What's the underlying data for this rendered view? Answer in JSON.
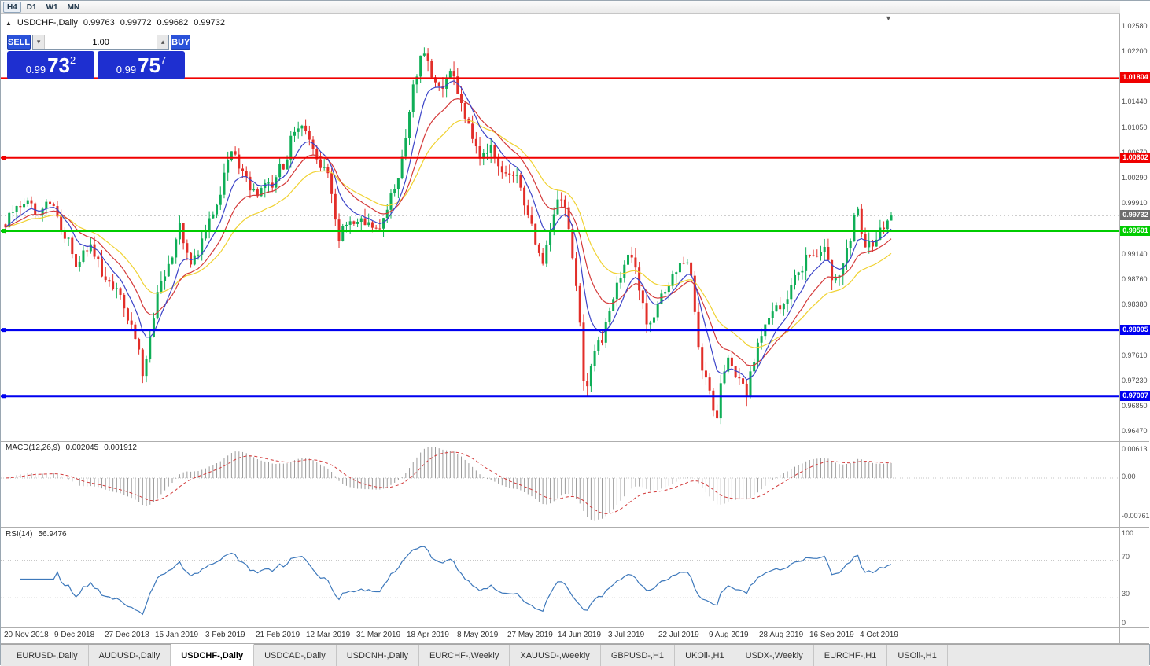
{
  "toolbar": {
    "timeframes": [
      "H4",
      "D1",
      "W1",
      "MN"
    ],
    "boxed": "H4"
  },
  "chart_header": {
    "symbol_title": "USDCHF-,Daily",
    "open": "0.99763",
    "high": "0.99772",
    "low": "0.99682",
    "close": "0.99732"
  },
  "icons": {
    "title_icon": "▲",
    "volume_down": "▾",
    "volume_up": "▴",
    "shift_marker": "▼"
  },
  "trade_panel": {
    "sell_label": "SELL",
    "buy_label": "BUY",
    "volume": "1.00",
    "sell": {
      "prefix": "0.99",
      "big": "73",
      "sup": "2"
    },
    "buy": {
      "prefix": "0.99",
      "big": "75",
      "sup": "7"
    }
  },
  "price_axis": {
    "ticks": [
      {
        "label": "1.02580",
        "price": 1.0258
      },
      {
        "label": "1.02200",
        "price": 1.022
      },
      {
        "label": "1.01440",
        "price": 1.0144
      },
      {
        "label": "1.01050",
        "price": 1.0105
      },
      {
        "label": "1.00670",
        "price": 1.0067
      },
      {
        "label": "1.00290",
        "price": 1.0029
      },
      {
        "label": "0.99910",
        "price": 0.9991
      },
      {
        "label": "0.99140",
        "price": 0.9914
      },
      {
        "label": "0.98760",
        "price": 0.9876
      },
      {
        "label": "0.98380",
        "price": 0.9838
      },
      {
        "label": "0.97610",
        "price": 0.9761
      },
      {
        "label": "0.97230",
        "price": 0.9723
      },
      {
        "label": "0.96850",
        "price": 0.9685
      },
      {
        "label": "0.96470",
        "price": 0.9647
      }
    ]
  },
  "levels": [
    {
      "price": 1.01804,
      "label": "1.01804",
      "color": "#f00000",
      "width": 2,
      "handle": false
    },
    {
      "price": 1.00602,
      "label": "1.00602",
      "color": "#f00000",
      "width": 2,
      "handle": true
    },
    {
      "price": 0.99501,
      "label": "0.99501",
      "color": "#00cc00",
      "width": 3,
      "handle": true
    },
    {
      "price": 0.98005,
      "label": "0.98005",
      "color": "#0000f0",
      "width": 3,
      "handle": true
    },
    {
      "price": 0.97007,
      "label": "0.97007",
      "color": "#0000f0",
      "width": 3,
      "handle": true
    }
  ],
  "current_price": {
    "value": 0.99732,
    "label": "0.99732",
    "badge_color": "#6e6e6e"
  },
  "macd": {
    "label": "MACD(12,26,9)",
    "value1": "0.002045",
    "value2": "0.001912",
    "axis": [
      "0.00613",
      "0.00",
      "-0.00761"
    ],
    "histogram_color": "#9a9a9a",
    "signal_color": "#d23b3b"
  },
  "rsi": {
    "label": "RSI(14)",
    "value": "56.9476",
    "axis": [
      "100",
      "70",
      "30",
      "0"
    ],
    "levels": [
      70,
      30
    ],
    "line_color": "#3d78bb"
  },
  "date_axis": [
    "20 Nov 2018",
    "9 Dec 2018",
    "27 Dec 2018",
    "15 Jan 2019",
    "3 Feb 2019",
    "21 Feb 2019",
    "12 Mar 2019",
    "31 Mar 2019",
    "18 Apr 2019",
    "8 May 2019",
    "27 May 2019",
    "14 Jun 2019",
    "3 Jul 2019",
    "22 Jul 2019",
    "9 Aug 2019",
    "28 Aug 2019",
    "16 Sep 2019",
    "4 Oct 2019"
  ],
  "tabs": {
    "items": [
      "EURUSD-,Daily",
      "AUDUSD-,Daily",
      "USDCHF-,Daily",
      "USDCAD-,Daily",
      "USDCNH-,Daily",
      "EURCHF-,Weekly",
      "XAUUSD-,Weekly",
      "GBPUSD-,H1",
      "UKOil-,H1",
      "USDX-,Weekly",
      "EURCHF-,H1",
      "USOil-,H1"
    ],
    "active_index": 2
  },
  "chart_data": {
    "type": "candlestick",
    "symbol": "USDCHF",
    "timeframe": "Daily",
    "ylim": [
      0.96328,
      1.0277
    ],
    "candle_count": 240,
    "x_start": 6,
    "x_end": 1132,
    "seed": 12,
    "last_close": 0.99732,
    "date_label_x": {
      "start": 4,
      "step": 64
    },
    "colors": {
      "up": "#0fae57",
      "down": "#e22e29",
      "ma_fast": "#3c44c8",
      "ma_mid": "#d43a3a",
      "ma_slow": "#f0d232"
    },
    "ma": {
      "fast_period": 8,
      "mid_period": 16,
      "slow_period": 28
    },
    "waypoints": [
      [
        6,
        0.996
      ],
      [
        25,
        0.999
      ],
      [
        45,
        0.998
      ],
      [
        62,
        0.9995
      ],
      [
        80,
        0.995
      ],
      [
        95,
        0.9905
      ],
      [
        110,
        0.993
      ],
      [
        125,
        0.9895
      ],
      [
        140,
        0.987
      ],
      [
        158,
        0.983
      ],
      [
        172,
        0.979
      ],
      [
        180,
        0.9732
      ],
      [
        188,
        0.978
      ],
      [
        200,
        0.9865
      ],
      [
        215,
        0.9905
      ],
      [
        228,
        0.996
      ],
      [
        240,
        0.9905
      ],
      [
        252,
        0.9925
      ],
      [
        265,
        0.996
      ],
      [
        280,
        1.001
      ],
      [
        292,
        1.008
      ],
      [
        305,
        1.004
      ],
      [
        318,
        1.001
      ],
      [
        330,
        1.0005
      ],
      [
        345,
        1.0025
      ],
      [
        360,
        1.005
      ],
      [
        372,
        1.01
      ],
      [
        380,
        1.012
      ],
      [
        392,
        1.0082
      ],
      [
        405,
        1.0052
      ],
      [
        418,
        1.0022
      ],
      [
        428,
        0.9932
      ],
      [
        440,
        0.9958
      ],
      [
        452,
        0.9975
      ],
      [
        465,
        0.996
      ],
      [
        478,
        0.9945
      ],
      [
        490,
        0.9985
      ],
      [
        502,
        1.002
      ],
      [
        512,
        1.007
      ],
      [
        522,
        1.015
      ],
      [
        532,
        1.02
      ],
      [
        540,
        1.022
      ],
      [
        550,
        1.0175
      ],
      [
        560,
        1.016
      ],
      [
        572,
        1.0195
      ],
      [
        583,
        1.0155
      ],
      [
        592,
        1.012
      ],
      [
        603,
        1.008
      ],
      [
        614,
        1.006
      ],
      [
        625,
        1.0078
      ],
      [
        637,
        1.0045
      ],
      [
        648,
        1.0035
      ],
      [
        658,
        1.0028
      ],
      [
        668,
        0.999
      ],
      [
        678,
        0.9935
      ],
      [
        687,
        0.9895
      ],
      [
        697,
        0.994
      ],
      [
        707,
        0.9985
      ],
      [
        715,
        1.0008
      ],
      [
        722,
        0.9955
      ],
      [
        730,
        0.988
      ],
      [
        737,
        0.98
      ],
      [
        743,
        0.97
      ],
      [
        750,
        0.9745
      ],
      [
        758,
        0.9775
      ],
      [
        768,
        0.98
      ],
      [
        780,
        0.9862
      ],
      [
        790,
        0.989
      ],
      [
        800,
        0.9915
      ],
      [
        810,
        0.987
      ],
      [
        820,
        0.9812
      ],
      [
        832,
        0.9832
      ],
      [
        845,
        0.9855
      ],
      [
        858,
        0.9895
      ],
      [
        868,
        0.9905
      ],
      [
        876,
        0.9912
      ],
      [
        884,
        0.98
      ],
      [
        892,
        0.9745
      ],
      [
        900,
        0.973
      ],
      [
        908,
        0.965
      ],
      [
        916,
        0.9718
      ],
      [
        926,
        0.9768
      ],
      [
        936,
        0.9725
      ],
      [
        948,
        0.9705
      ],
      [
        960,
        0.9768
      ],
      [
        972,
        0.98
      ],
      [
        985,
        0.9828
      ],
      [
        998,
        0.985
      ],
      [
        1010,
        0.988
      ],
      [
        1022,
        0.9902
      ],
      [
        1034,
        0.9918
      ],
      [
        1046,
        0.993
      ],
      [
        1055,
        0.989
      ],
      [
        1062,
        0.9868
      ],
      [
        1072,
        0.991
      ],
      [
        1082,
        0.9945
      ],
      [
        1088,
        0.9988
      ],
      [
        1096,
        0.9938
      ],
      [
        1105,
        0.9925
      ],
      [
        1114,
        0.9944
      ],
      [
        1123,
        0.9952
      ],
      [
        1132,
        0.99732
      ]
    ]
  }
}
